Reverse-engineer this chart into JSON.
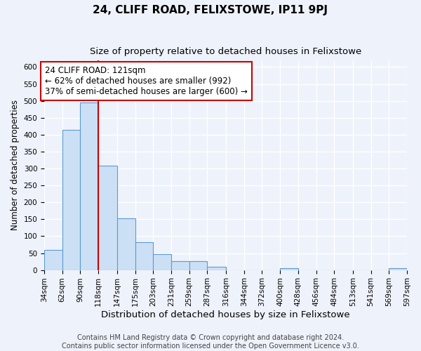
{
  "title": "24, CLIFF ROAD, FELIXSTOWE, IP11 9PJ",
  "subtitle": "Size of property relative to detached houses in Felixstowe",
  "xlabel": "Distribution of detached houses by size in Felixstowe",
  "ylabel": "Number of detached properties",
  "bin_edges": [
    34,
    62,
    90,
    118,
    147,
    175,
    203,
    231,
    259,
    287,
    316,
    344,
    372,
    400,
    428,
    456,
    484,
    513,
    541,
    569,
    597
  ],
  "bin_labels": [
    "34sqm",
    "62sqm",
    "90sqm",
    "118sqm",
    "147sqm",
    "175sqm",
    "203sqm",
    "231sqm",
    "259sqm",
    "287sqm",
    "316sqm",
    "344sqm",
    "372sqm",
    "400sqm",
    "428sqm",
    "456sqm",
    "484sqm",
    "513sqm",
    "541sqm",
    "569sqm",
    "597sqm"
  ],
  "counts": [
    60,
    415,
    495,
    308,
    152,
    83,
    46,
    27,
    27,
    10,
    0,
    0,
    0,
    5,
    0,
    0,
    0,
    0,
    0,
    5
  ],
  "bar_color": "#cce0f5",
  "bar_edge_color": "#5b9bd5",
  "vline_x": 118,
  "vline_color": "#cc0000",
  "annotation_line1": "24 CLIFF ROAD: 121sqm",
  "annotation_line2": "← 62% of detached houses are smaller (992)",
  "annotation_line3": "37% of semi-detached houses are larger (600) →",
  "annotation_box_color": "#ffffff",
  "annotation_box_edge_color": "#cc0000",
  "ylim": [
    0,
    620
  ],
  "yticks": [
    0,
    50,
    100,
    150,
    200,
    250,
    300,
    350,
    400,
    450,
    500,
    550,
    600
  ],
  "footer_line1": "Contains HM Land Registry data © Crown copyright and database right 2024.",
  "footer_line2": "Contains public sector information licensed under the Open Government Licence v3.0.",
  "background_color": "#eef2fa",
  "grid_color": "#ffffff",
  "title_fontsize": 11,
  "subtitle_fontsize": 9.5,
  "xlabel_fontsize": 9.5,
  "ylabel_fontsize": 8.5,
  "tick_fontsize": 7.5,
  "annotation_fontsize": 8.5,
  "footer_fontsize": 7
}
